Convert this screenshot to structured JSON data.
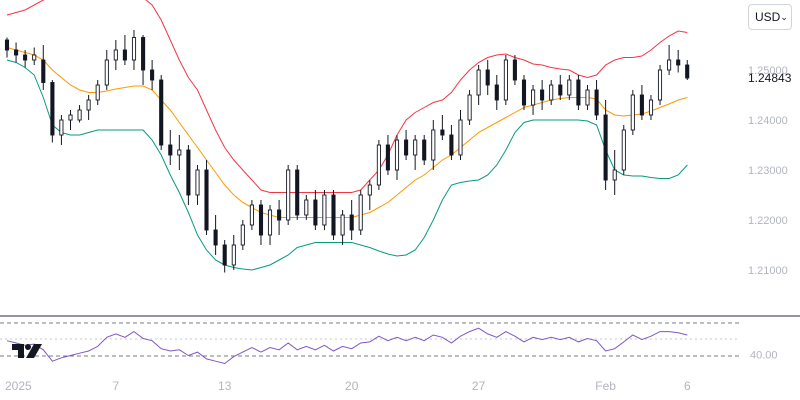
{
  "currency_selector": {
    "value": "USD",
    "icon": "chevron-down-icon"
  },
  "price_scale": {
    "ticks": [
      "1.25000",
      "1.24000",
      "1.23000",
      "1.22000",
      "1.21000"
    ],
    "tick_values": [
      1.25,
      1.24,
      1.23,
      1.22,
      1.21
    ]
  },
  "last_price": {
    "label": "1.24843",
    "value": 1.24843
  },
  "indicator_scale": {
    "tick": "40.00",
    "tick_value": 40
  },
  "time_axis": {
    "labels": [
      {
        "text": "2025",
        "index": 0
      },
      {
        "text": "7",
        "index": 12
      },
      {
        "text": "13",
        "index": 24
      },
      {
        "text": "20",
        "index": 38
      },
      {
        "text": "27",
        "index": 52
      },
      {
        "text": "Feb",
        "index": 66
      },
      {
        "text": "6",
        "index": 75
      }
    ]
  },
  "colors": {
    "upper_band": "#f23645",
    "middle_band": "#ff9800",
    "lower_band": "#089981",
    "rsi": "#7e57c2",
    "candle": "#131722",
    "grid": "#e0e3eb"
  },
  "chart_data": {
    "type": "candlestick",
    "price_ylim": [
      1.203,
      1.263
    ],
    "rsi_ylim": [
      28,
      72
    ],
    "candles": [
      [
        1.256,
        1.2565,
        1.2525,
        1.254
      ],
      [
        1.254,
        1.2555,
        1.2515,
        1.253
      ],
      [
        1.253,
        1.254,
        1.2505,
        1.252
      ],
      [
        1.252,
        1.2545,
        1.251,
        1.253
      ],
      [
        1.252,
        1.255,
        1.246,
        1.2475
      ],
      [
        1.2475,
        1.248,
        1.2355,
        1.237
      ],
      [
        1.237,
        1.241,
        1.235,
        1.24
      ],
      [
        1.24,
        1.242,
        1.238,
        1.241
      ],
      [
        1.24,
        1.243,
        1.2395,
        1.242
      ],
      [
        1.242,
        1.245,
        1.24,
        1.244
      ],
      [
        1.244,
        1.248,
        1.243,
        1.247
      ],
      [
        1.247,
        1.254,
        1.246,
        1.252
      ],
      [
        1.252,
        1.256,
        1.25,
        1.254
      ],
      [
        1.254,
        1.257,
        1.251,
        1.252
      ],
      [
        1.252,
        1.258,
        1.25,
        1.2565
      ],
      [
        1.2565,
        1.257,
        1.247,
        1.25
      ],
      [
        1.25,
        1.252,
        1.246,
        1.248
      ],
      [
        1.248,
        1.249,
        1.234,
        1.235
      ],
      [
        1.235,
        1.238,
        1.231,
        1.233
      ],
      [
        1.233,
        1.237,
        1.23,
        1.234
      ],
      [
        1.234,
        1.235,
        1.223,
        1.225
      ],
      [
        1.225,
        1.231,
        1.223,
        1.23
      ],
      [
        1.23,
        1.232,
        1.217,
        1.218
      ],
      [
        1.218,
        1.221,
        1.213,
        1.215
      ],
      [
        1.215,
        1.216,
        1.2095,
        1.211
      ],
      [
        1.211,
        1.217,
        1.21,
        1.215
      ],
      [
        1.215,
        1.22,
        1.214,
        1.219
      ],
      [
        1.219,
        1.224,
        1.218,
        1.223
      ],
      [
        1.223,
        1.224,
        1.215,
        1.217
      ],
      [
        1.217,
        1.223,
        1.215,
        1.222
      ],
      [
        1.222,
        1.224,
        1.217,
        1.22
      ],
      [
        1.22,
        1.231,
        1.219,
        1.23
      ],
      [
        1.23,
        1.231,
        1.22,
        1.221
      ],
      [
        1.221,
        1.225,
        1.22,
        1.224
      ],
      [
        1.224,
        1.226,
        1.218,
        1.219
      ],
      [
        1.219,
        1.226,
        1.218,
        1.225
      ],
      [
        1.225,
        1.226,
        1.216,
        1.217
      ],
      [
        1.217,
        1.222,
        1.215,
        1.221
      ],
      [
        1.221,
        1.224,
        1.216,
        1.218
      ],
      [
        1.218,
        1.226,
        1.217,
        1.225
      ],
      [
        1.225,
        1.228,
        1.222,
        1.227
      ],
      [
        1.227,
        1.236,
        1.226,
        1.235
      ],
      [
        1.235,
        1.237,
        1.229,
        1.23
      ],
      [
        1.23,
        1.237,
        1.228,
        1.236
      ],
      [
        1.236,
        1.238,
        1.232,
        1.233
      ],
      [
        1.233,
        1.237,
        1.23,
        1.236
      ],
      [
        1.236,
        1.237,
        1.231,
        1.232
      ],
      [
        1.232,
        1.24,
        1.23,
        1.238
      ],
      [
        1.238,
        1.241,
        1.236,
        1.237
      ],
      [
        1.237,
        1.239,
        1.232,
        1.233
      ],
      [
        1.233,
        1.242,
        1.232,
        1.24
      ],
      [
        1.24,
        1.246,
        1.239,
        1.245
      ],
      [
        1.245,
        1.251,
        1.243,
        1.25
      ],
      [
        1.25,
        1.252,
        1.245,
        1.247
      ],
      [
        1.247,
        1.249,
        1.242,
        1.244
      ],
      [
        1.244,
        1.253,
        1.243,
        1.252
      ],
      [
        1.252,
        1.253,
        1.247,
        1.248
      ],
      [
        1.248,
        1.249,
        1.242,
        1.243
      ],
      [
        1.243,
        1.247,
        1.241,
        1.246
      ],
      [
        1.246,
        1.248,
        1.242,
        1.244
      ],
      [
        1.244,
        1.248,
        1.243,
        1.247
      ],
      [
        1.247,
        1.249,
        1.244,
        1.245
      ],
      [
        1.245,
        1.249,
        1.244,
        1.248
      ],
      [
        1.248,
        1.249,
        1.242,
        1.243
      ],
      [
        1.243,
        1.247,
        1.242,
        1.246
      ],
      [
        1.246,
        1.248,
        1.24,
        1.241
      ],
      [
        1.241,
        1.244,
        1.226,
        1.228
      ],
      [
        1.228,
        1.234,
        1.225,
        1.23
      ],
      [
        1.23,
        1.239,
        1.229,
        1.238
      ],
      [
        1.238,
        1.246,
        1.237,
        1.245
      ],
      [
        1.245,
        1.247,
        1.24,
        1.241
      ],
      [
        1.241,
        1.245,
        1.24,
        1.244
      ],
      [
        1.244,
        1.251,
        1.243,
        1.25
      ],
      [
        1.25,
        1.255,
        1.249,
        1.252
      ],
      [
        1.252,
        1.254,
        1.2495,
        1.251
      ],
      [
        1.251,
        1.252,
        1.248,
        1.2484
      ]
    ],
    "upper_band": [
      1.261,
      1.2615,
      1.262,
      1.263,
      1.264,
      1.2648,
      1.2652,
      1.2655,
      1.2655,
      1.2652,
      1.265,
      1.265,
      1.265,
      1.265,
      1.265,
      1.2645,
      1.263,
      1.26,
      1.256,
      1.252,
      1.2485,
      1.246,
      1.242,
      1.238,
      1.2345,
      1.232,
      1.23,
      1.228,
      1.226,
      1.2255,
      1.2255,
      1.2255,
      1.2255,
      1.2255,
      1.2255,
      1.2255,
      1.2255,
      1.2255,
      1.2255,
      1.226,
      1.228,
      1.23,
      1.233,
      1.237,
      1.24,
      1.2415,
      1.2425,
      1.2435,
      1.244,
      1.2455,
      1.248,
      1.25,
      1.2515,
      1.2525,
      1.253,
      1.2532,
      1.2525,
      1.252,
      1.2512,
      1.251,
      1.2505,
      1.2502,
      1.25,
      1.249,
      1.2485,
      1.249,
      1.251,
      1.252,
      1.2525,
      1.2525,
      1.2528,
      1.254,
      1.2555,
      1.2568,
      1.2578,
      1.2575
    ],
    "middle_band": [
      1.2545,
      1.254,
      1.2535,
      1.253,
      1.252,
      1.25,
      1.2485,
      1.247,
      1.246,
      1.2455,
      1.2455,
      1.2458,
      1.2462,
      1.2465,
      1.2468,
      1.2468,
      1.246,
      1.244,
      1.242,
      1.2395,
      1.237,
      1.2345,
      1.232,
      1.2295,
      1.227,
      1.225,
      1.2235,
      1.2225,
      1.2215,
      1.221,
      1.2205,
      1.2205,
      1.2205,
      1.2205,
      1.2205,
      1.2205,
      1.2205,
      1.2205,
      1.2205,
      1.221,
      1.2215,
      1.2225,
      1.2235,
      1.225,
      1.2265,
      1.228,
      1.229,
      1.2305,
      1.232,
      1.233,
      1.2345,
      1.236,
      1.2375,
      1.2385,
      1.2395,
      1.2405,
      1.2415,
      1.2425,
      1.243,
      1.2435,
      1.244,
      1.2443,
      1.2445,
      1.2445,
      1.2445,
      1.2442,
      1.242,
      1.241,
      1.2408,
      1.241,
      1.2412,
      1.2418,
      1.2425,
      1.2432,
      1.244,
      1.2445
    ],
    "lower_band": [
      1.252,
      1.2515,
      1.2505,
      1.249,
      1.2445,
      1.239,
      1.2375,
      1.237,
      1.237,
      1.2375,
      1.238,
      1.238,
      1.238,
      1.238,
      1.238,
      1.238,
      1.236,
      1.233,
      1.229,
      1.2255,
      1.2215,
      1.217,
      1.214,
      1.212,
      1.211,
      1.2105,
      1.2102,
      1.21,
      1.2105,
      1.211,
      1.212,
      1.213,
      1.2145,
      1.215,
      1.2155,
      1.2155,
      1.2155,
      1.2155,
      1.2155,
      1.215,
      1.2145,
      1.2138,
      1.2132,
      1.2128,
      1.213,
      1.214,
      1.2165,
      1.22,
      1.224,
      1.227,
      1.2275,
      1.2278,
      1.228,
      1.229,
      1.231,
      1.234,
      1.2375,
      1.2395,
      1.24,
      1.24,
      1.24,
      1.24,
      1.24,
      1.24,
      1.2398,
      1.239,
      1.234,
      1.23,
      1.229,
      1.2288,
      1.2288,
      1.2285,
      1.2283,
      1.2283,
      1.229,
      1.231
    ],
    "rsi": [
      52,
      50,
      48,
      49,
      44,
      34,
      37,
      39,
      41,
      43,
      47,
      55,
      58,
      55,
      60,
      54,
      52,
      45,
      43,
      44,
      39,
      42,
      36,
      34,
      32,
      38,
      42,
      46,
      42,
      46,
      44,
      50,
      44,
      47,
      44,
      48,
      43,
      47,
      45,
      50,
      51,
      56,
      52,
      55,
      52,
      55,
      52,
      57,
      55,
      50,
      56,
      60,
      63,
      58,
      55,
      60,
      56,
      51,
      55,
      53,
      55,
      53,
      55,
      51,
      54,
      52,
      43,
      45,
      51,
      57,
      53,
      56,
      60,
      60,
      59,
      57
    ]
  }
}
